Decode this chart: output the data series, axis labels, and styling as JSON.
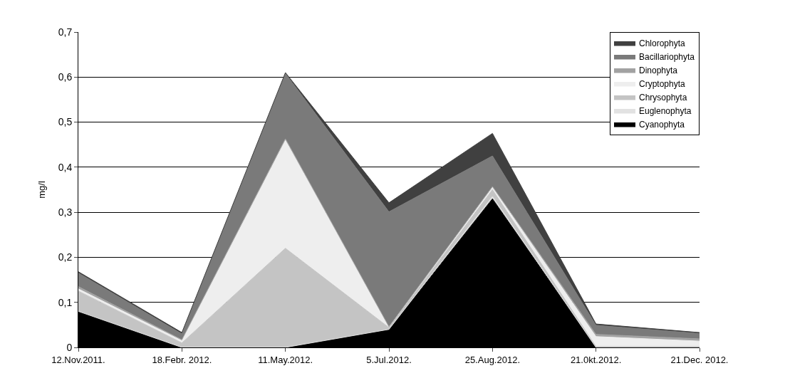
{
  "chart_data": {
    "type": "area",
    "stacked": true,
    "ylabel": "mg/l",
    "categories": [
      "12.Nov.2011.",
      "18.Febr. 2012.",
      "11.May.2012.",
      "5.Jul.2012.",
      "25.Aug.2012.",
      "21.0kt.2012.",
      "21.Dec. 2012."
    ],
    "series": [
      {
        "name": "Cyanophyta",
        "color": "#000000",
        "values": [
          0.08,
          0,
          0,
          0.04,
          0.33,
          0,
          0
        ]
      },
      {
        "name": "Euglenophyta",
        "color": "#e2e2e2",
        "values": [
          0,
          0,
          0,
          0,
          0.005,
          0,
          0
        ]
      },
      {
        "name": "Chrysophyta",
        "color": "#c4c4c4",
        "values": [
          0.045,
          0.01,
          0.22,
          0.004,
          0.015,
          0.002,
          0.002
        ]
      },
      {
        "name": "Cryptophyta",
        "color": "#eeeeee",
        "values": [
          0.005,
          0.005,
          0.24,
          0.002,
          0.005,
          0.022,
          0.012
        ]
      },
      {
        "name": "Dinophyta",
        "color": "#a2a2a2",
        "values": [
          0.005,
          0.002,
          0.003,
          0,
          0.002,
          0.005,
          0.005
        ]
      },
      {
        "name": "Bacillariophyta",
        "color": "#7a7a7a",
        "values": [
          0.03,
          0.013,
          0.145,
          0.255,
          0.068,
          0.02,
          0.012
        ]
      },
      {
        "name": "Chlorophyta",
        "color": "#404040",
        "values": [
          0.003,
          0.003,
          0.002,
          0.02,
          0.05,
          0.003,
          0.002
        ]
      }
    ],
    "ylim": [
      0,
      0.7
    ],
    "yticks": [
      0,
      {
        "value": 0.1,
        "label": "0,1"
      },
      {
        "value": 0.2,
        "label": "0,2"
      },
      {
        "value": 0.3,
        "label": "0,3"
      },
      {
        "value": 0.4,
        "label": "0,4"
      },
      {
        "value": 0.5,
        "label": "0,5"
      },
      {
        "value": 0.6,
        "label": "0,6"
      },
      {
        "value": 0.7,
        "label": "0,7"
      }
    ],
    "grid": "y",
    "legend": "top right"
  }
}
